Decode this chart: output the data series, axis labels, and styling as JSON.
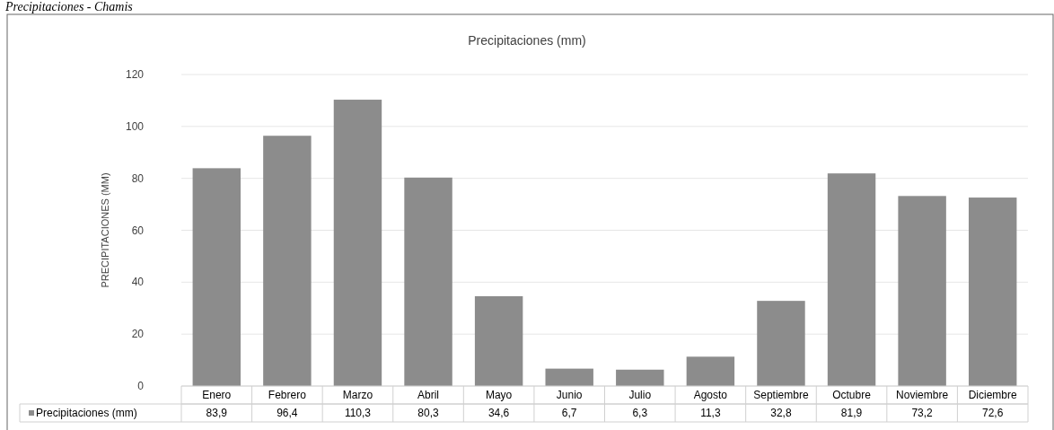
{
  "chart_data": {
    "type": "bar",
    "title": "Precipitaciones (mm)",
    "ylabel": "PRECIPITACIONES (MM)",
    "annotations": [
      "Precipitaciones - Chamis"
    ],
    "categories": [
      "Enero",
      "Febrero",
      "Marzo",
      "Abril",
      "Mayo",
      "Junio",
      "Julio",
      "Agosto",
      "Septiembre",
      "Octubre",
      "Noviembre",
      "Diciembre"
    ],
    "series": [
      {
        "name": "Precipitaciones (mm)",
        "color": "#8c8c8c",
        "values": [
          83.9,
          96.4,
          110.3,
          80.3,
          34.6,
          6.7,
          6.3,
          11.3,
          32.8,
          81.9,
          73.2,
          72.6
        ],
        "value_labels": [
          "83,9",
          "96,4",
          "110,3",
          "80,3",
          "34,6",
          "6,7",
          "6,3",
          "11,3",
          "32,8",
          "81,9",
          "73,2",
          "72,6"
        ]
      }
    ],
    "ylim": [
      0,
      120
    ],
    "yticks": [
      0,
      20,
      40,
      60,
      80,
      100,
      120
    ],
    "grid": "y",
    "legend": "bottom"
  }
}
